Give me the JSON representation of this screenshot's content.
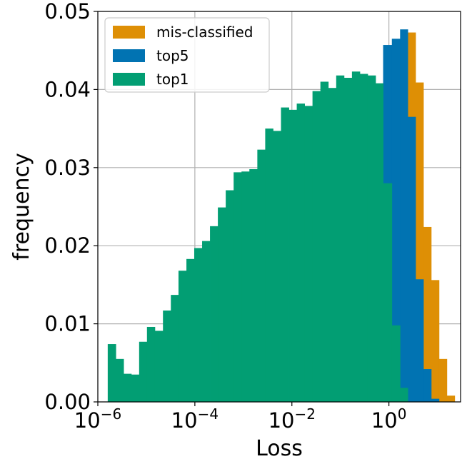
{
  "chart_data": {
    "type": "bar",
    "xscale": "log",
    "xlabel": "Loss",
    "ylabel": "frequency",
    "xlim": [
      1e-06,
      30
    ],
    "ylim": [
      0,
      0.05
    ],
    "grid": true,
    "legend_position": "top-left",
    "x_tick_labels": [
      {
        "value": 1e-06,
        "base": "10",
        "exp": "−6"
      },
      {
        "value": 0.0001,
        "base": "10",
        "exp": "−4"
      },
      {
        "value": 0.01,
        "base": "10",
        "exp": "−2"
      },
      {
        "value": 1,
        "base": "10",
        "exp": "0"
      }
    ],
    "y_tick_labels": [
      "0.00",
      "0.01",
      "0.02",
      "0.03",
      "0.04",
      "0.05"
    ],
    "y_tick_values": [
      0,
      0.01,
      0.02,
      0.03,
      0.04,
      0.05
    ],
    "series": [
      {
        "name": "mis-classified",
        "color": "#de8f05",
        "bins": [
          {
            "x0": 2.45,
            "x1": 3.55,
            "y": 0.0473
          },
          {
            "x0": 3.55,
            "x1": 5.15,
            "y": 0.0409
          },
          {
            "x0": 5.15,
            "x1": 7.45,
            "y": 0.0224
          },
          {
            "x0": 7.45,
            "x1": 10.8,
            "y": 0.0156
          },
          {
            "x0": 10.8,
            "x1": 15.65,
            "y": 0.0055
          },
          {
            "x0": 15.65,
            "x1": 22.7,
            "y": 0.0008
          }
        ]
      },
      {
        "name": "top5",
        "color": "#0173b2",
        "bins": [
          {
            "x0": 0.76,
            "x1": 1.15,
            "y": 0.0457
          },
          {
            "x0": 1.15,
            "x1": 1.7,
            "y": 0.0465
          },
          {
            "x0": 1.7,
            "x1": 2.45,
            "y": 0.0477
          },
          {
            "x0": 2.45,
            "x1": 3.55,
            "y": 0.0365
          },
          {
            "x0": 3.55,
            "x1": 5.15,
            "y": 0.0157
          },
          {
            "x0": 5.15,
            "x1": 7.45,
            "y": 0.0042
          },
          {
            "x0": 7.45,
            "x1": 10.8,
            "y": 0.0004
          }
        ]
      },
      {
        "name": "top1",
        "color": "#029e73",
        "bins": [
          {
            "x0": 1.6e-06,
            "x1": 2.35e-06,
            "y": 0.0074
          },
          {
            "x0": 2.35e-06,
            "x1": 3.4e-06,
            "y": 0.0055
          },
          {
            "x0": 3.4e-06,
            "x1": 4.9e-06,
            "y": 0.0036
          },
          {
            "x0": 4.9e-06,
            "x1": 7.1e-06,
            "y": 0.0035
          },
          {
            "x0": 7.1e-06,
            "x1": 1.03e-05,
            "y": 0.0077
          },
          {
            "x0": 1.03e-05,
            "x1": 1.5e-05,
            "y": 0.0096
          },
          {
            "x0": 1.5e-05,
            "x1": 2.2e-05,
            "y": 0.0091
          },
          {
            "x0": 2.2e-05,
            "x1": 3.2e-05,
            "y": 0.0117
          },
          {
            "x0": 3.2e-05,
            "x1": 4.6e-05,
            "y": 0.0137
          },
          {
            "x0": 4.6e-05,
            "x1": 6.7e-05,
            "y": 0.0168
          },
          {
            "x0": 6.7e-05,
            "x1": 9.7e-05,
            "y": 0.0183
          },
          {
            "x0": 9.7e-05,
            "x1": 0.000141,
            "y": 0.0197
          },
          {
            "x0": 0.000141,
            "x1": 0.000205,
            "y": 0.0206
          },
          {
            "x0": 0.000205,
            "x1": 0.000298,
            "y": 0.0225
          },
          {
            "x0": 0.000298,
            "x1": 0.000433,
            "y": 0.0249
          },
          {
            "x0": 0.000433,
            "x1": 0.00063,
            "y": 0.0271
          },
          {
            "x0": 0.00063,
            "x1": 0.000916,
            "y": 0.0294
          },
          {
            "x0": 0.000916,
            "x1": 0.00133,
            "y": 0.0295
          },
          {
            "x0": 0.00133,
            "x1": 0.00194,
            "y": 0.0298
          },
          {
            "x0": 0.00194,
            "x1": 0.00282,
            "y": 0.0323
          },
          {
            "x0": 0.00282,
            "x1": 0.0041,
            "y": 0.035
          },
          {
            "x0": 0.0041,
            "x1": 0.00596,
            "y": 0.0347
          },
          {
            "x0": 0.00596,
            "x1": 0.00867,
            "y": 0.0377
          },
          {
            "x0": 0.00867,
            "x1": 0.0126,
            "y": 0.0374
          },
          {
            "x0": 0.0126,
            "x1": 0.0183,
            "y": 0.0382
          },
          {
            "x0": 0.0183,
            "x1": 0.0266,
            "y": 0.0379
          },
          {
            "x0": 0.0266,
            "x1": 0.0387,
            "y": 0.0398
          },
          {
            "x0": 0.0387,
            "x1": 0.0563,
            "y": 0.041
          },
          {
            "x0": 0.0563,
            "x1": 0.0819,
            "y": 0.0402
          },
          {
            "x0": 0.0819,
            "x1": 0.119,
            "y": 0.0418
          },
          {
            "x0": 0.119,
            "x1": 0.173,
            "y": 0.0415
          },
          {
            "x0": 0.173,
            "x1": 0.252,
            "y": 0.0423
          },
          {
            "x0": 0.252,
            "x1": 0.366,
            "y": 0.042
          },
          {
            "x0": 0.366,
            "x1": 0.532,
            "y": 0.0418
          },
          {
            "x0": 0.532,
            "x1": 0.76,
            "y": 0.0408
          },
          {
            "x0": 0.76,
            "x1": 1.15,
            "y": 0.028
          },
          {
            "x0": 1.15,
            "x1": 1.7,
            "y": 0.0098
          },
          {
            "x0": 1.7,
            "x1": 2.45,
            "y": 0.0018
          }
        ]
      }
    ]
  }
}
